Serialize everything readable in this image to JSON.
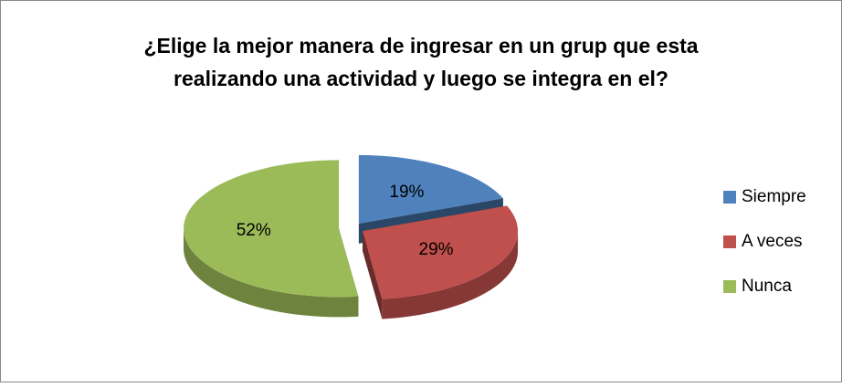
{
  "chart_data": {
    "type": "pie",
    "title": [
      "¿Elige la mejor manera de ingresar en un grup que esta",
      "realizando una actividad y luego se integra en el?"
    ],
    "categories": [
      "Siempre",
      "A veces",
      "Nunca"
    ],
    "values": [
      19,
      29,
      52
    ],
    "value_labels": [
      "19%",
      "29%",
      "52%"
    ],
    "colors": [
      "#4f81bd",
      "#c0504d",
      "#9bbb59"
    ],
    "legend": "right"
  }
}
